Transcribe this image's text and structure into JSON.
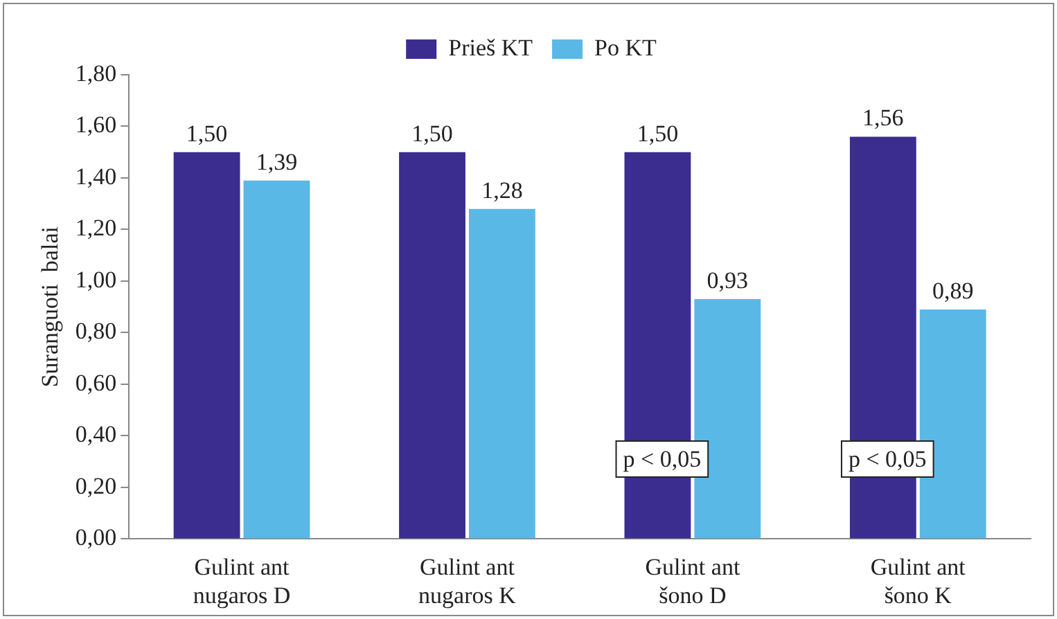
{
  "chart_data": {
    "type": "bar",
    "ylabel": "Suranguoti  balai",
    "categories": [
      "Gulint ant nugaros D",
      "Gulint ant nugaros K",
      "Gulint ant šono D",
      "Gulint ant šono K"
    ],
    "series": [
      {
        "name": "Prieš KT",
        "color": "#3b2c8f",
        "values": [
          1.5,
          1.5,
          1.5,
          1.56
        ],
        "value_labels": [
          "1,50",
          "1,50",
          "1,50",
          "1,56"
        ]
      },
      {
        "name": "Po KT",
        "color": "#5ab8e6",
        "values": [
          1.39,
          1.28,
          0.93,
          0.89
        ],
        "value_labels": [
          "1,39",
          "1,28",
          "0,93",
          "0,89"
        ]
      }
    ],
    "ylim": [
      0,
      1.8
    ],
    "yticks": [
      {
        "value": 0,
        "label": "0,00"
      },
      {
        "value": 0.2,
        "label": "0,20"
      },
      {
        "value": 0.4,
        "label": "0,40"
      },
      {
        "value": 0.6,
        "label": "0,60"
      },
      {
        "value": 0.8,
        "label": "0,80"
      },
      {
        "value": 1,
        "label": "1,00"
      },
      {
        "value": 1.2,
        "label": "1,20"
      },
      {
        "value": 1.4,
        "label": "1,40"
      },
      {
        "value": 1.6,
        "label": "1,60"
      },
      {
        "value": 1.8,
        "label": "1,80"
      }
    ],
    "annotations": [
      {
        "text": "p < 0,05",
        "x": "Gulint ant šono D",
        "y": 0.31
      },
      {
        "text": "p < 0,05",
        "x": "Gulint ant šono K",
        "y": 0.31
      }
    ],
    "grid": false,
    "legend": "top"
  }
}
